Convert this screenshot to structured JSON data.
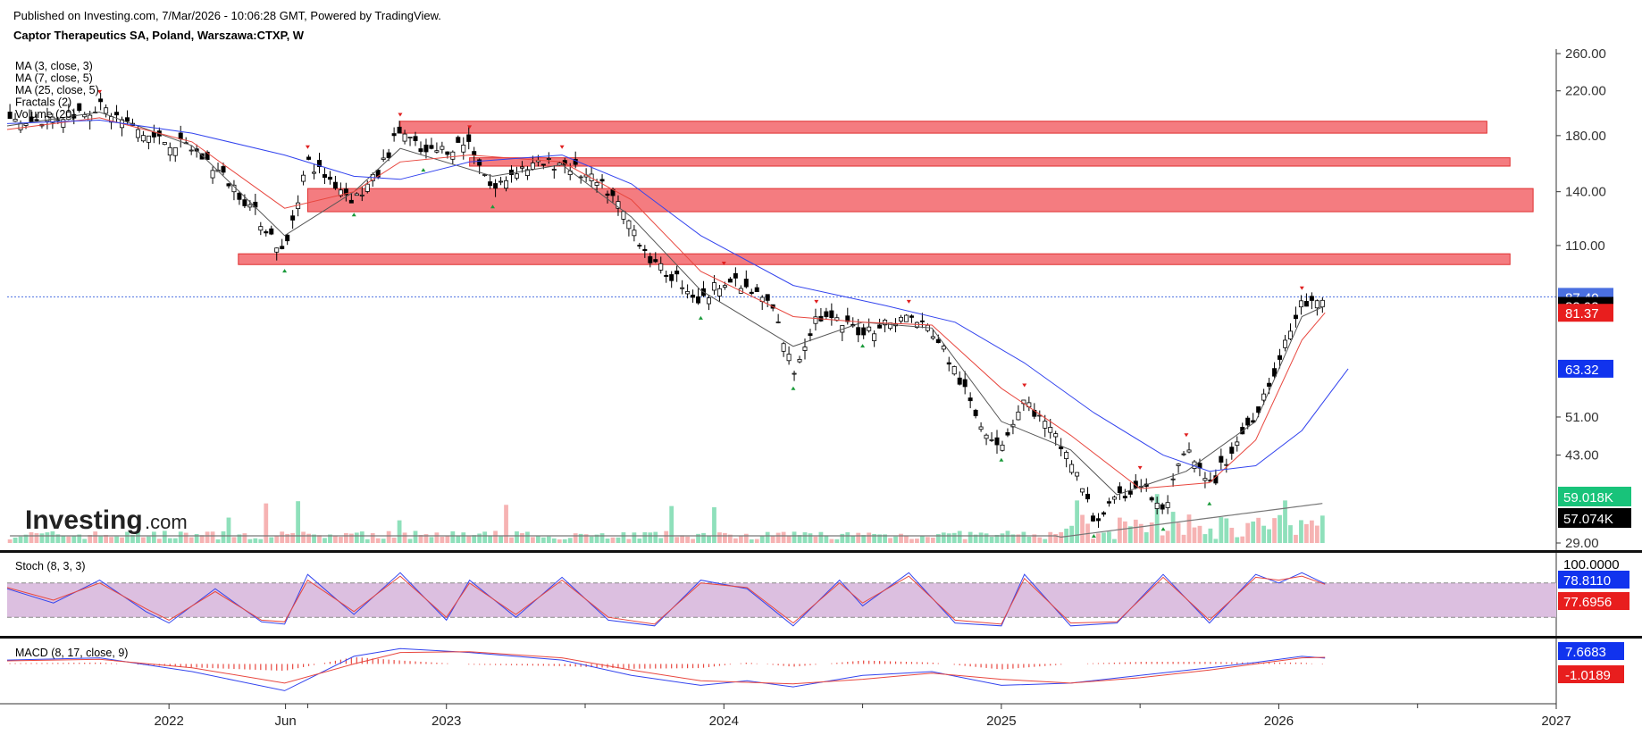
{
  "header": {
    "published": "Published on Investing.com, 7/Mar/2026 - 10:06:28 GMT, Powered by TradingView.",
    "symbol": "Captor Therapeutics SA, Poland, Warszawa:CTXP, W"
  },
  "indicators": [
    "MA (3, close, 3)",
    "MA (7, close, 5)",
    "MA (25, close, 5)",
    "Fractals (2)",
    "Volume (20)"
  ],
  "logo": {
    "text": "Investing",
    "suffix": ".com"
  },
  "colors": {
    "price": "#000000",
    "ma3": "#555555",
    "ma7": "#e8473f",
    "ma25": "#3344ee",
    "zone_fill": "#f47c80",
    "zone_stroke": "#e03030",
    "vol_up": "#8fe0bb",
    "vol_down": "#f6b3b3",
    "stoch_k": "#3344ee",
    "stoch_d": "#e8473f",
    "stoch_band": "#dcbfe0",
    "macd": "#3344ee",
    "signal": "#e8473f",
    "hist": "#e8473f",
    "fractal_up": "#e02020",
    "fractal_down": "#1a9a3a"
  },
  "chart_data": [
    {
      "type": "line",
      "title": "Captor Therapeutics SA, Poland, Warszawa:CTXP, W",
      "y_scale": "log",
      "ylim": [
        29,
        260
      ],
      "y_ticks": [
        "260.00",
        "220.00",
        "180.00",
        "140.00",
        "110.00",
        "51.00",
        "43.00",
        "29.00"
      ],
      "x_ticks": [
        "2022",
        "Jun",
        "2023",
        "2024",
        "2025",
        "2026",
        "2027"
      ],
      "xlim": [
        "2021-06",
        "2027-01"
      ],
      "grid": false,
      "series": [
        {
          "name": "close",
          "points": [
            [
              "2021-06",
              190
            ],
            [
              "2021-08",
              195
            ],
            [
              "2021-10",
              205
            ],
            [
              "2021-12",
              180
            ],
            [
              "2022-02",
              170
            ],
            [
              "2022-04",
              140
            ],
            [
              "2022-06",
              105
            ],
            [
              "2022-07",
              160
            ],
            [
              "2022-09",
              135
            ],
            [
              "2022-10",
              150
            ],
            [
              "2022-11",
              185
            ],
            [
              "2022-12",
              165
            ],
            [
              "2023-02",
              175
            ],
            [
              "2023-03",
              140
            ],
            [
              "2023-04",
              155
            ],
            [
              "2023-06",
              160
            ],
            [
              "2023-08",
              140
            ],
            [
              "2023-09",
              120
            ],
            [
              "2023-10",
              100
            ],
            [
              "2023-11",
              95
            ],
            [
              "2023-12",
              85
            ],
            [
              "2024-01",
              95
            ],
            [
              "2024-03",
              85
            ],
            [
              "2024-04",
              62
            ],
            [
              "2024-05",
              80
            ],
            [
              "2024-07",
              75
            ],
            [
              "2024-09",
              80
            ],
            [
              "2024-10",
              75
            ],
            [
              "2024-12",
              50
            ],
            [
              "2025-01",
              45
            ],
            [
              "2025-02",
              55
            ],
            [
              "2025-04",
              42
            ],
            [
              "2025-05",
              32
            ],
            [
              "2025-07",
              38
            ],
            [
              "2025-08",
              33
            ],
            [
              "2025-09",
              44
            ],
            [
              "2025-10",
              37
            ],
            [
              "2025-11",
              44
            ],
            [
              "2025-12",
              52
            ],
            [
              "2026-01",
              65
            ],
            [
              "2026-02",
              85
            ],
            [
              "2026-03",
              83.93
            ]
          ]
        },
        {
          "name": "MA3",
          "points": [
            [
              "2021-06",
              188
            ],
            [
              "2021-10",
              200
            ],
            [
              "2022-02",
              172
            ],
            [
              "2022-06",
              115
            ],
            [
              "2022-09",
              140
            ],
            [
              "2022-11",
              170
            ],
            [
              "2023-03",
              150
            ],
            [
              "2023-06",
              158
            ],
            [
              "2023-09",
              125
            ],
            [
              "2023-12",
              90
            ],
            [
              "2024-04",
              70
            ],
            [
              "2024-07",
              78
            ],
            [
              "2024-10",
              76
            ],
            [
              "2025-01",
              50
            ],
            [
              "2025-04",
              44
            ],
            [
              "2025-06",
              36
            ],
            [
              "2025-09",
              40
            ],
            [
              "2025-12",
              50
            ],
            [
              "2026-02",
              80
            ],
            [
              "2026-03",
              83.93
            ]
          ]
        },
        {
          "name": "MA7",
          "points": [
            [
              "2021-06",
              185
            ],
            [
              "2021-10",
              195
            ],
            [
              "2022-02",
              175
            ],
            [
              "2022-06",
              130
            ],
            [
              "2022-09",
              140
            ],
            [
              "2022-11",
              160
            ],
            [
              "2023-02",
              165
            ],
            [
              "2023-06",
              160
            ],
            [
              "2023-09",
              135
            ],
            [
              "2023-12",
              98
            ],
            [
              "2024-04",
              80
            ],
            [
              "2024-07",
              78
            ],
            [
              "2024-10",
              77
            ],
            [
              "2025-01",
              58
            ],
            [
              "2025-04",
              47
            ],
            [
              "2025-07",
              37
            ],
            [
              "2025-10",
              38
            ],
            [
              "2025-12",
              46
            ],
            [
              "2026-02",
              72
            ],
            [
              "2026-03",
              81.37
            ]
          ]
        },
        {
          "name": "MA25",
          "points": [
            [
              "2021-06",
              190
            ],
            [
              "2021-10",
              193
            ],
            [
              "2022-02",
              182
            ],
            [
              "2022-06",
              165
            ],
            [
              "2022-09",
              150
            ],
            [
              "2022-11",
              148
            ],
            [
              "2023-02",
              160
            ],
            [
              "2023-06",
              165
            ],
            [
              "2023-09",
              145
            ],
            [
              "2023-12",
              115
            ],
            [
              "2024-04",
              92
            ],
            [
              "2024-08",
              84
            ],
            [
              "2024-11",
              78
            ],
            [
              "2025-02",
              65
            ],
            [
              "2025-05",
              52
            ],
            [
              "2025-08",
              43
            ],
            [
              "2025-10",
              40
            ],
            [
              "2025-12",
              41
            ],
            [
              "2026-02",
              48
            ],
            [
              "2026-04",
              63.32
            ]
          ]
        }
      ],
      "zones": [
        {
          "x1": "2022-11",
          "x2": "2026-10",
          "y1": 182,
          "y2": 192
        },
        {
          "x1": "2023-02",
          "x2": "2026-11",
          "y1": 157,
          "y2": 163
        },
        {
          "x1": "2022-07",
          "x2": "2026-12",
          "y1": 128,
          "y2": 142
        },
        {
          "x1": "2022-04",
          "x2": "2026-11",
          "y1": 101,
          "y2": 106
        }
      ],
      "current_price_line": 87.4,
      "price_labels": [
        {
          "value": 87.4,
          "text": "87.40",
          "bg": "#4a6fe0",
          "fg": "#ffffff"
        },
        {
          "value": 83.93,
          "text": "83.93",
          "bg": "#000000",
          "fg": "#ffffff"
        },
        {
          "value": 81.37,
          "text": "81.37",
          "bg": "#e81e1e",
          "fg": "#ffffff"
        },
        {
          "value": 63.32,
          "text": "63.32",
          "bg": "#1133ee",
          "fg": "#ffffff"
        }
      ],
      "volume": {
        "labels": [
          {
            "text": "59.018K",
            "bg": "#18c37a",
            "fg": "#ffffff"
          },
          {
            "text": "57.074K",
            "bg": "#000000",
            "fg": "#ffffff"
          }
        ]
      }
    },
    {
      "type": "line",
      "title": "Stoch (8, 3, 3)",
      "ylim": [
        0,
        100
      ],
      "band": [
        20,
        80
      ],
      "series": [
        {
          "name": "%K",
          "points": [
            [
              "2021-06",
              70
            ],
            [
              "2021-08",
              45
            ],
            [
              "2021-10",
              85
            ],
            [
              "2021-12",
              30
            ],
            [
              "2022-01",
              10
            ],
            [
              "2022-03",
              70
            ],
            [
              "2022-05",
              12
            ],
            [
              "2022-06",
              8
            ],
            [
              "2022-07",
              95
            ],
            [
              "2022-09",
              25
            ],
            [
              "2022-11",
              98
            ],
            [
              "2023-01",
              15
            ],
            [
              "2023-02",
              85
            ],
            [
              "2023-04",
              20
            ],
            [
              "2023-06",
              90
            ],
            [
              "2023-08",
              15
            ],
            [
              "2023-10",
              5
            ],
            [
              "2023-12",
              85
            ],
            [
              "2024-02",
              70
            ],
            [
              "2024-04",
              5
            ],
            [
              "2024-06",
              85
            ],
            [
              "2024-07",
              40
            ],
            [
              "2024-09",
              98
            ],
            [
              "2024-11",
              10
            ],
            [
              "2025-01",
              5
            ],
            [
              "2025-02",
              95
            ],
            [
              "2025-04",
              5
            ],
            [
              "2025-06",
              10
            ],
            [
              "2025-08",
              95
            ],
            [
              "2025-10",
              10
            ],
            [
              "2025-12",
              95
            ],
            [
              "2026-01",
              80
            ],
            [
              "2026-02",
              98
            ],
            [
              "2026-03",
              78.811
            ]
          ]
        },
        {
          "name": "%D",
          "points": [
            [
              "2021-06",
              72
            ],
            [
              "2021-08",
              50
            ],
            [
              "2021-10",
              80
            ],
            [
              "2021-12",
              35
            ],
            [
              "2022-01",
              15
            ],
            [
              "2022-03",
              65
            ],
            [
              "2022-05",
              15
            ],
            [
              "2022-06",
              12
            ],
            [
              "2022-07",
              85
            ],
            [
              "2022-09",
              30
            ],
            [
              "2022-11",
              92
            ],
            [
              "2023-01",
              20
            ],
            [
              "2023-02",
              80
            ],
            [
              "2023-04",
              25
            ],
            [
              "2023-06",
              85
            ],
            [
              "2023-08",
              20
            ],
            [
              "2023-10",
              8
            ],
            [
              "2023-12",
              80
            ],
            [
              "2024-02",
              72
            ],
            [
              "2024-04",
              10
            ],
            [
              "2024-06",
              80
            ],
            [
              "2024-07",
              45
            ],
            [
              "2024-09",
              92
            ],
            [
              "2024-11",
              15
            ],
            [
              "2025-01",
              8
            ],
            [
              "2025-02",
              88
            ],
            [
              "2025-04",
              10
            ],
            [
              "2025-06",
              12
            ],
            [
              "2025-08",
              90
            ],
            [
              "2025-10",
              15
            ],
            [
              "2025-12",
              90
            ],
            [
              "2026-01",
              85
            ],
            [
              "2026-02",
              92
            ],
            [
              "2026-03",
              77.6956
            ]
          ]
        }
      ],
      "labels": [
        {
          "text": "100.0000",
          "value": 100,
          "bg": "#ffffff",
          "fg": "#000000"
        },
        {
          "text": "78.8110",
          "value": 78.811,
          "bg": "#1133ee",
          "fg": "#ffffff"
        },
        {
          "text": "77.6956",
          "value": 77.6956,
          "bg": "#e81e1e",
          "fg": "#ffffff"
        }
      ]
    },
    {
      "type": "line",
      "title": "MACD (8, 17, close, 9)",
      "ylim": [
        -45,
        25
      ],
      "series": [
        {
          "name": "MACD",
          "points": [
            [
              "2021-06",
              5
            ],
            [
              "2021-10",
              8
            ],
            [
              "2022-02",
              -10
            ],
            [
              "2022-06",
              -35
            ],
            [
              "2022-09",
              10
            ],
            [
              "2022-11",
              20
            ],
            [
              "2023-02",
              15
            ],
            [
              "2023-06",
              5
            ],
            [
              "2023-09",
              -15
            ],
            [
              "2023-12",
              -28
            ],
            [
              "2024-02",
              -22
            ],
            [
              "2024-04",
              -30
            ],
            [
              "2024-07",
              -15
            ],
            [
              "2024-10",
              -10
            ],
            [
              "2025-01",
              -28
            ],
            [
              "2025-04",
              -25
            ],
            [
              "2025-07",
              -15
            ],
            [
              "2025-10",
              -5
            ],
            [
              "2025-12",
              2
            ],
            [
              "2026-02",
              10
            ],
            [
              "2026-03",
              7.6683
            ]
          ]
        },
        {
          "name": "Signal",
          "points": [
            [
              "2021-06",
              4
            ],
            [
              "2021-10",
              6
            ],
            [
              "2022-02",
              -5
            ],
            [
              "2022-06",
              -25
            ],
            [
              "2022-09",
              0
            ],
            [
              "2022-11",
              15
            ],
            [
              "2023-02",
              16
            ],
            [
              "2023-06",
              8
            ],
            [
              "2023-09",
              -8
            ],
            [
              "2023-12",
              -22
            ],
            [
              "2024-02",
              -24
            ],
            [
              "2024-04",
              -26
            ],
            [
              "2024-07",
              -20
            ],
            [
              "2024-10",
              -12
            ],
            [
              "2025-01",
              -20
            ],
            [
              "2025-04",
              -25
            ],
            [
              "2025-07",
              -18
            ],
            [
              "2025-10",
              -8
            ],
            [
              "2025-12",
              0
            ],
            [
              "2026-02",
              8
            ],
            [
              "2026-03",
              8.7
            ]
          ]
        }
      ],
      "labels": [
        {
          "text": "7.6683",
          "value": 7.6683,
          "bg": "#1133ee",
          "fg": "#ffffff"
        },
        {
          "text": "-1.0189",
          "value": -1.0189,
          "bg": "#e81e1e",
          "fg": "#ffffff"
        }
      ]
    }
  ]
}
